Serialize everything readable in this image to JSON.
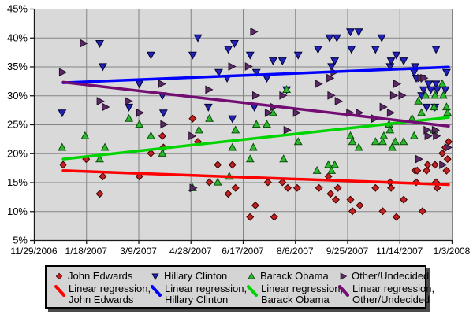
{
  "chart_data": {
    "type": "scatter",
    "title": "",
    "xlabel": "",
    "ylabel": "",
    "grid": true,
    "plot_bg": "#d9d9d9",
    "grid_color": "#848484",
    "axis_color": "#1a1a1a",
    "x_axis": {
      "tick_days": [
        0,
        50,
        100,
        150,
        200,
        250,
        300,
        350,
        400
      ],
      "tick_labels": [
        "11/29/2006",
        "1/18/2007",
        "3/9/2007",
        "4/28/2007",
        "6/17/2007",
        "8/6/2007",
        "9/25/2007",
        "11/14/2007",
        "1/3/2008"
      ],
      "range_days": [
        0,
        400
      ]
    },
    "y_axis": {
      "ticks": [
        5,
        10,
        15,
        20,
        25,
        30,
        35,
        40,
        45
      ],
      "tick_labels": [
        "5%",
        "10%",
        "15%",
        "20%",
        "25%",
        "30%",
        "35%",
        "40%",
        "45%"
      ],
      "range": [
        5,
        45
      ]
    },
    "series": [
      {
        "name": "John Edwards",
        "marker": "diamond",
        "fill": "#c32222",
        "stroke": "#3a0000",
        "points": [
          [
            28,
            18
          ],
          [
            50,
            19
          ],
          [
            63,
            13
          ],
          [
            66,
            16
          ],
          [
            101,
            16
          ],
          [
            112,
            20
          ],
          [
            123,
            23
          ],
          [
            124,
            21
          ],
          [
            152,
            26
          ],
          [
            157,
            22
          ],
          [
            168,
            15
          ],
          [
            176,
            18
          ],
          [
            186,
            13
          ],
          [
            190,
            18
          ],
          [
            193,
            14
          ],
          [
            207,
            9
          ],
          [
            212,
            11
          ],
          [
            224,
            15
          ],
          [
            230,
            9
          ],
          [
            238,
            15
          ],
          [
            243,
            14
          ],
          [
            252,
            14
          ],
          [
            273,
            14
          ],
          [
            282,
            16
          ],
          [
            284,
            13
          ],
          [
            289,
            12
          ],
          [
            291,
            14
          ],
          [
            303,
            12
          ],
          [
            305,
            10
          ],
          [
            312,
            11
          ],
          [
            327,
            14
          ],
          [
            334,
            10
          ],
          [
            341,
            15
          ],
          [
            342,
            14
          ],
          [
            347,
            9
          ],
          [
            354,
            12
          ],
          [
            365,
            17
          ],
          [
            367,
            17
          ],
          [
            366,
            15
          ],
          [
            372,
            10
          ],
          [
            376,
            17
          ],
          [
            377,
            18
          ],
          [
            384,
            18
          ],
          [
            385,
            15
          ],
          [
            386,
            14
          ],
          [
            391,
            20
          ],
          [
            394,
            21
          ],
          [
            395,
            17
          ],
          [
            396,
            19
          ],
          [
            397,
            22
          ]
        ]
      },
      {
        "name": "Hillary Clinton",
        "marker": "triangle-down",
        "fill": "#2323bb",
        "stroke": "#000033",
        "points": [
          [
            27,
            27
          ],
          [
            63,
            39
          ],
          [
            66,
            35
          ],
          [
            91,
            28
          ],
          [
            101,
            32
          ],
          [
            112,
            37
          ],
          [
            123,
            30
          ],
          [
            124,
            27
          ],
          [
            152,
            37
          ],
          [
            157,
            40
          ],
          [
            167,
            28
          ],
          [
            177,
            34
          ],
          [
            185,
            33
          ],
          [
            186,
            38
          ],
          [
            190,
            26
          ],
          [
            192,
            39
          ],
          [
            207,
            37
          ],
          [
            211,
            28
          ],
          [
            213,
            34
          ],
          [
            223,
            33
          ],
          [
            229,
            36
          ],
          [
            238,
            36
          ],
          [
            242,
            31
          ],
          [
            253,
            37
          ],
          [
            272,
            38
          ],
          [
            283,
            40
          ],
          [
            285,
            35
          ],
          [
            288,
            36
          ],
          [
            290,
            40
          ],
          [
            303,
            41
          ],
          [
            304,
            38
          ],
          [
            311,
            41
          ],
          [
            327,
            38
          ],
          [
            333,
            40
          ],
          [
            341,
            35
          ],
          [
            342,
            36
          ],
          [
            347,
            37
          ],
          [
            354,
            36
          ],
          [
            364,
            34
          ],
          [
            365,
            35
          ],
          [
            366,
            33
          ],
          [
            371,
            33
          ],
          [
            371,
            30
          ],
          [
            373,
            31
          ],
          [
            378,
            32
          ],
          [
            380,
            31
          ],
          [
            384,
            28
          ],
          [
            376,
            28
          ],
          [
            385,
            38
          ],
          [
            385,
            32
          ],
          [
            386,
            31
          ],
          [
            394,
            31
          ],
          [
            395,
            34
          ]
        ]
      },
      {
        "name": "Barack Obama",
        "marker": "triangle-up",
        "fill": "#2eb82e",
        "stroke": "#0a4d0a",
        "points": [
          [
            27,
            21
          ],
          [
            49,
            23
          ],
          [
            63,
            19
          ],
          [
            68,
            21
          ],
          [
            91,
            26
          ],
          [
            101,
            25
          ],
          [
            112,
            23
          ],
          [
            123,
            20
          ],
          [
            152,
            14
          ],
          [
            158,
            24
          ],
          [
            168,
            26
          ],
          [
            176,
            15
          ],
          [
            187,
            16
          ],
          [
            190,
            21
          ],
          [
            193,
            24
          ],
          [
            207,
            19
          ],
          [
            210,
            21
          ],
          [
            213,
            25
          ],
          [
            223,
            25
          ],
          [
            229,
            27
          ],
          [
            239,
            19
          ],
          [
            242,
            31
          ],
          [
            253,
            22
          ],
          [
            271,
            17
          ],
          [
            282,
            18
          ],
          [
            285,
            17
          ],
          [
            288,
            18
          ],
          [
            303,
            23
          ],
          [
            305,
            22
          ],
          [
            311,
            21
          ],
          [
            327,
            22
          ],
          [
            334,
            22
          ],
          [
            335,
            23
          ],
          [
            340,
            25
          ],
          [
            341,
            24
          ],
          [
            343,
            21
          ],
          [
            346,
            22
          ],
          [
            354,
            22
          ],
          [
            362,
            26
          ],
          [
            364,
            23
          ],
          [
            368,
            29
          ],
          [
            371,
            27
          ],
          [
            375,
            30
          ],
          [
            383,
            28
          ],
          [
            383,
            24
          ],
          [
            384,
            30
          ],
          [
            391,
            32
          ],
          [
            392,
            30
          ],
          [
            395,
            28
          ],
          [
            396,
            27
          ]
        ]
      },
      {
        "name": "Other/Undecided",
        "marker": "triangle-right",
        "fill": "#5b2a66",
        "stroke": "#26102b",
        "points": [
          [
            27,
            34
          ],
          [
            47,
            39
          ],
          [
            63,
            29
          ],
          [
            68,
            28
          ],
          [
            90,
            29
          ],
          [
            101,
            27
          ],
          [
            122,
            32
          ],
          [
            124,
            25
          ],
          [
            151,
            23
          ],
          [
            152,
            14
          ],
          [
            167,
            31
          ],
          [
            189,
            35
          ],
          [
            205,
            35
          ],
          [
            210,
            41
          ],
          [
            212,
            30
          ],
          [
            224,
            27
          ],
          [
            229,
            28
          ],
          [
            238,
            30
          ],
          [
            242,
            24
          ],
          [
            251,
            27
          ],
          [
            272,
            32
          ],
          [
            283,
            33
          ],
          [
            284,
            30
          ],
          [
            287,
            34
          ],
          [
            291,
            29
          ],
          [
            302,
            27
          ],
          [
            311,
            27
          ],
          [
            326,
            26
          ],
          [
            334,
            28
          ],
          [
            341,
            27
          ],
          [
            344,
            30
          ],
          [
            347,
            32
          ],
          [
            352,
            30
          ],
          [
            368,
            19
          ],
          [
            370,
            33
          ],
          [
            373,
            33
          ],
          [
            376,
            24
          ],
          [
            377,
            23
          ],
          [
            384,
            24
          ],
          [
            385,
            23
          ],
          [
            391,
            18
          ],
          [
            396,
            21
          ]
        ]
      }
    ],
    "regressions": [
      {
        "name": "Linear regression, John Edwards",
        "color": "#ff0000",
        "start": [
          28,
          17.0
        ],
        "end": [
          397,
          14.6
        ]
      },
      {
        "name": "Linear regression, Hillary Clinton",
        "color": "#0000ff",
        "start": [
          28,
          32.2
        ],
        "end": [
          397,
          34.9
        ]
      },
      {
        "name": "Linear regression, Barack Obama",
        "color": "#00d400",
        "start": [
          28,
          19.0
        ],
        "end": [
          397,
          26.2
        ]
      },
      {
        "name": "Linear regression, Other/Undecided",
        "color": "#730d73",
        "start": [
          28,
          32.3
        ],
        "end": [
          397,
          24.7
        ]
      }
    ],
    "legend": {
      "position": "bottom",
      "regression_prefix": "Linear regression,",
      "entries": [
        "John Edwards",
        "Hillary Clinton",
        "Barack Obama",
        "Other/Undecided"
      ]
    }
  }
}
